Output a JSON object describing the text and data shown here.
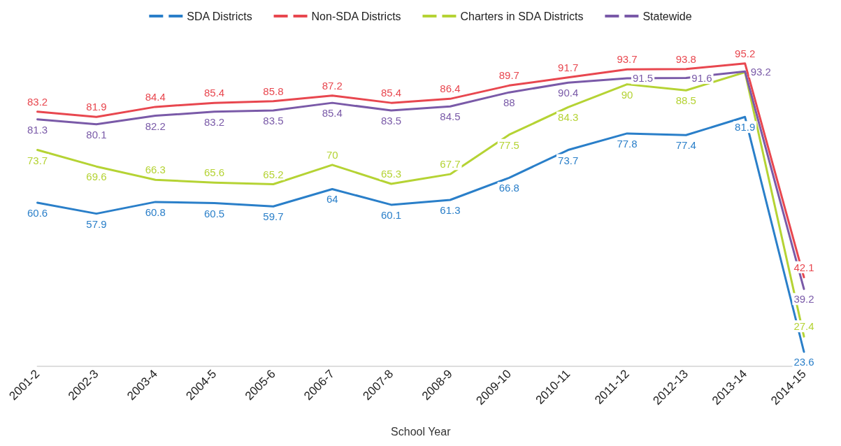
{
  "chart_data": {
    "type": "line",
    "xlabel": "School Year",
    "categories": [
      "2001-2",
      "2002-3",
      "2003-4",
      "2004-5",
      "2005-6",
      "2006-7",
      "2007-8",
      "2008-9",
      "2009-10",
      "2010-11",
      "2011-12",
      "2012-13",
      "2013-14",
      "2014-15"
    ],
    "series": [
      {
        "name": "SDA Districts",
        "color": "#2a7fc9",
        "values": [
          60.6,
          57.9,
          60.8,
          60.5,
          59.7,
          64,
          60.1,
          61.3,
          66.8,
          73.7,
          77.8,
          77.4,
          81.9,
          23.6
        ]
      },
      {
        "name": "Non-SDA Districts",
        "color": "#e8474f",
        "values": [
          83.2,
          81.9,
          84.4,
          85.4,
          85.8,
          87.2,
          85.4,
          86.4,
          89.7,
          91.7,
          93.7,
          93.8,
          95.2,
          42.1
        ]
      },
      {
        "name": "Charters in SDA Districts",
        "color": "#b5d334",
        "values": [
          73.7,
          69.6,
          66.3,
          65.6,
          65.2,
          70,
          65.3,
          67.7,
          77.5,
          84.3,
          90,
          88.5,
          93,
          27.4
        ],
        "value_labels": [
          "73.7",
          "69.6",
          "66.3",
          "65.6",
          "65.2",
          "70",
          "65.3",
          "67.7",
          "77.5",
          "84.3",
          "90",
          "88.5",
          null,
          "27.4"
        ]
      },
      {
        "name": "Statewide",
        "color": "#7a5aa8",
        "values": [
          81.3,
          80.1,
          82.2,
          83.2,
          83.5,
          85.4,
          83.5,
          84.5,
          88,
          90.4,
          91.5,
          91.6,
          93.2,
          39.2
        ]
      }
    ],
    "data_labels": true,
    "legend": "top",
    "marker": "none",
    "line_style": "solid"
  }
}
